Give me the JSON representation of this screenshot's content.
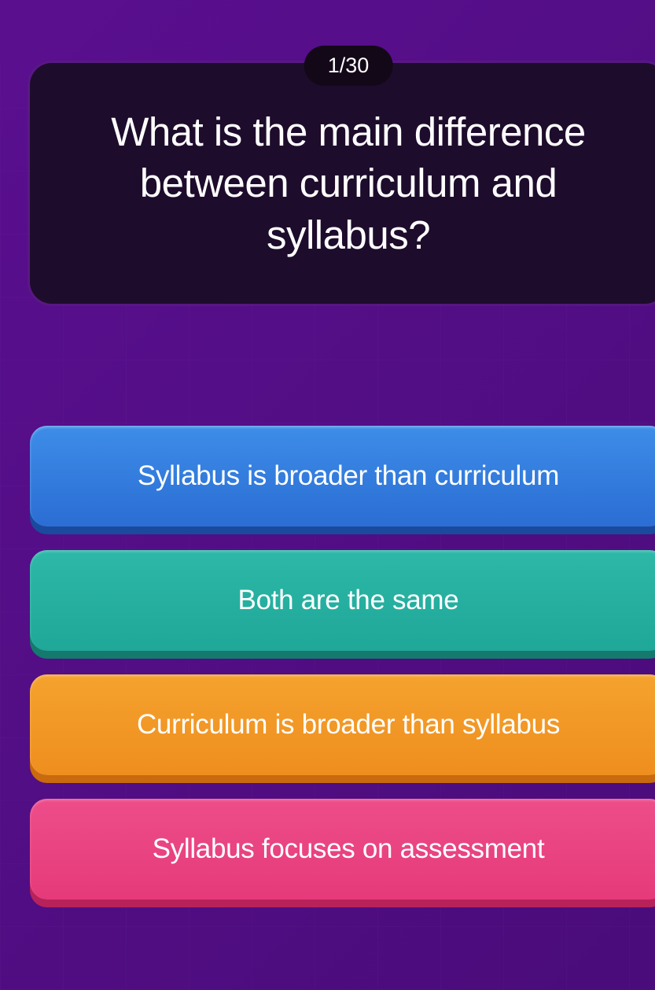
{
  "theme": {
    "background_gradient_start": "#5a0f8f",
    "background_gradient_end": "#4a0c7a",
    "question_card_bg": "#1e0c2c",
    "counter_badge_bg": "#130818",
    "text_color": "#ffffff"
  },
  "quiz": {
    "counter": "1/30",
    "current_question": 1,
    "total_questions": 30,
    "question": "What is the main difference between curriculum and syllabus?",
    "question_fontsize": 51,
    "answer_fontsize": 35,
    "answers": [
      {
        "text": "Syllabus is broader than curriculum",
        "color_name": "blue",
        "bg_gradient_top": "#3d8de8",
        "bg_gradient_bottom": "#2b6dd4",
        "shadow_color": "#1a4a9e"
      },
      {
        "text": "Both are the same",
        "color_name": "teal",
        "bg_gradient_top": "#2db8a8",
        "bg_gradient_bottom": "#1fa798",
        "shadow_color": "#147a6e"
      },
      {
        "text": "Curriculum is broader than syllabus",
        "color_name": "orange",
        "bg_gradient_top": "#f5a22e",
        "bg_gradient_bottom": "#ee8e1e",
        "shadow_color": "#c96a0e"
      },
      {
        "text": "Syllabus focuses on assessment",
        "color_name": "pink",
        "bg_gradient_top": "#ed4d8a",
        "bg_gradient_bottom": "#e63a7a",
        "shadow_color": "#b8225a"
      }
    ]
  }
}
